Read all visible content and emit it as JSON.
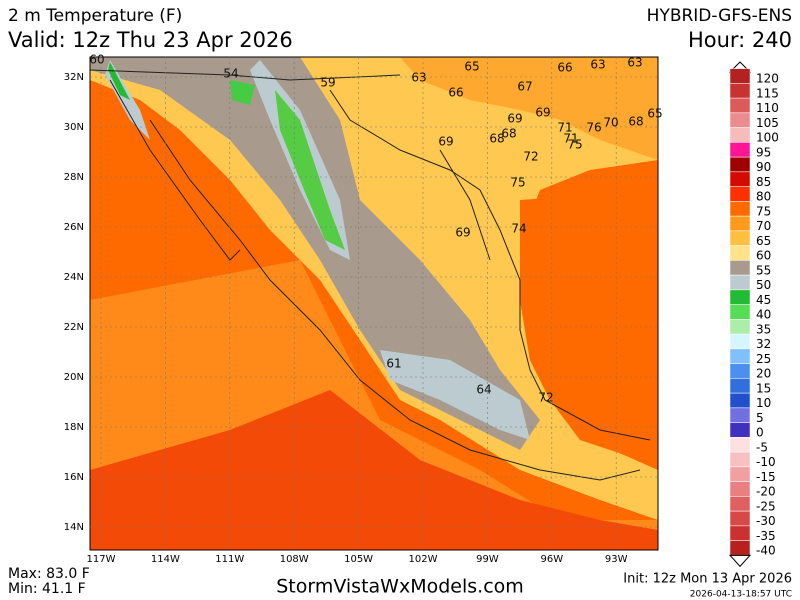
{
  "header": {
    "title": "2 m Temperature (F)",
    "valid": "Valid: 12z Thu 23 Apr 2026",
    "model": "HYBRID-GFS-ENS",
    "hour": "Hour: 240"
  },
  "map": {
    "lat_labels": [
      "32N",
      "30N",
      "28N",
      "26N",
      "24N",
      "22N",
      "20N",
      "18N",
      "16N",
      "14N"
    ],
    "lon_labels": [
      "117W",
      "114W",
      "111W",
      "108W",
      "105W",
      "102W",
      "99W",
      "96W",
      "93W"
    ],
    "point_labels": [
      "60",
      "54",
      "59",
      "63",
      "65",
      "66",
      "67",
      "66",
      "63",
      "63",
      "69",
      "69",
      "68",
      "68",
      "71",
      "71",
      "75",
      "76",
      "70",
      "68",
      "65",
      "69",
      "72",
      "75",
      "74",
      "69",
      "61",
      "64",
      "72"
    ]
  },
  "colorbar": {
    "labels": [
      "120",
      "115",
      "110",
      "105",
      "100",
      "95",
      "90",
      "85",
      "80",
      "75",
      "70",
      "65",
      "60",
      "55",
      "50",
      "45",
      "40",
      "35",
      "32",
      "25",
      "20",
      "15",
      "10",
      "5",
      "0",
      "-5",
      "-10",
      "-15",
      "-20",
      "-25",
      "-30",
      "-35",
      "-40"
    ],
    "colors": [
      "#b22222",
      "#c83232",
      "#dc5a5a",
      "#ec8c8c",
      "#f6bcbc",
      "#ff1493",
      "#a00000",
      "#d40c00",
      "#ff3000",
      "#ff6a00",
      "#ff9a1a",
      "#ffbf40",
      "#ffe38a",
      "#a89a8c",
      "#bccbd0",
      "#22bb33",
      "#55dd55",
      "#aaeeaa",
      "#d6f6ff",
      "#80c0ff",
      "#4a90ee",
      "#3070dd",
      "#2050cc",
      "#7070e0",
      "#4030c0",
      "#ffe0e0",
      "#f8c0c0",
      "#f0a0a0",
      "#e88080",
      "#e06060",
      "#d84848",
      "#cc3030",
      "#b82020"
    ]
  },
  "footer": {
    "max": "Max: 83.0 F",
    "min": "Min: 41.1 F",
    "site": "StormVistaWxModels.com",
    "init": "Init: 12z Mon 13 Apr 2026",
    "stamp": "2026-04-13-18:57 UTC"
  }
}
